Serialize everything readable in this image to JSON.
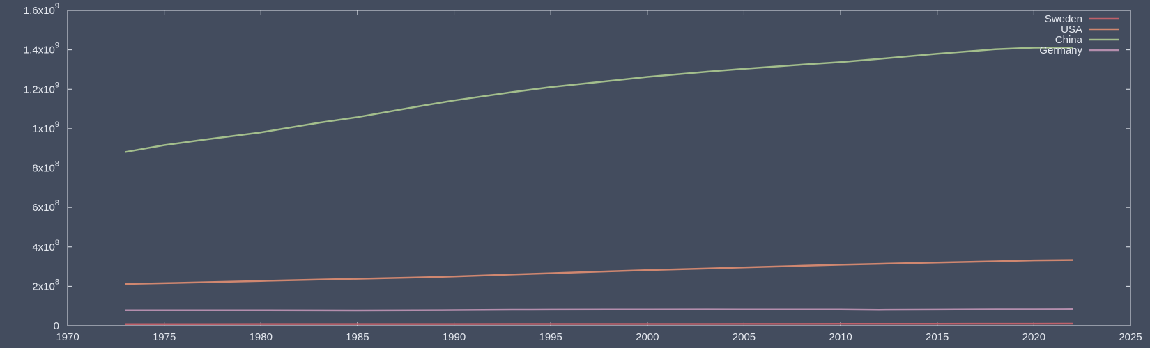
{
  "chart_data": {
    "type": "line",
    "title": "",
    "xlabel": "",
    "ylabel": "",
    "xlim": [
      1970,
      2025
    ],
    "ylim": [
      0,
      1600000000
    ],
    "x_ticks": [
      {
        "value": 1970,
        "label": "1970"
      },
      {
        "value": 1975,
        "label": "1975"
      },
      {
        "value": 1980,
        "label": "1980"
      },
      {
        "value": 1985,
        "label": "1985"
      },
      {
        "value": 1990,
        "label": "1990"
      },
      {
        "value": 1995,
        "label": "1995"
      },
      {
        "value": 2000,
        "label": "2000"
      },
      {
        "value": 2005,
        "label": "2005"
      },
      {
        "value": 2010,
        "label": "2010"
      },
      {
        "value": 2015,
        "label": "2015"
      },
      {
        "value": 2020,
        "label": "2020"
      },
      {
        "value": 2025,
        "label": "2025"
      }
    ],
    "y_ticks": [
      {
        "value": 0,
        "mantissa": "0",
        "exponent": ""
      },
      {
        "value": 200000000,
        "mantissa": "2x10",
        "exponent": "8"
      },
      {
        "value": 400000000,
        "mantissa": "4x10",
        "exponent": "8"
      },
      {
        "value": 600000000,
        "mantissa": "6x10",
        "exponent": "8"
      },
      {
        "value": 800000000,
        "mantissa": "8x10",
        "exponent": "8"
      },
      {
        "value": 1000000000,
        "mantissa": "1x10",
        "exponent": "9"
      },
      {
        "value": 1200000000,
        "mantissa": "1.2x10",
        "exponent": "9"
      },
      {
        "value": 1400000000,
        "mantissa": "1.4x10",
        "exponent": "9"
      },
      {
        "value": 1600000000,
        "mantissa": "1.6x10",
        "exponent": "9"
      }
    ],
    "grid": false,
    "legend_position": "top-right",
    "x": [
      1973,
      1975,
      1977,
      1980,
      1983,
      1985,
      1988,
      1990,
      1993,
      1995,
      1998,
      2000,
      2003,
      2005,
      2008,
      2010,
      2012,
      2015,
      2018,
      2020,
      2022
    ],
    "series": [
      {
        "name": "Sweden",
        "color": "#bf616a",
        "values": [
          8140000,
          8190000,
          8250000,
          8310000,
          8330000,
          8350000,
          8440000,
          8560000,
          8720000,
          8830000,
          8850000,
          8870000,
          8960000,
          9030000,
          9220000,
          9380000,
          9520000,
          9800000,
          10180000,
          10350000,
          10490000
        ]
      },
      {
        "name": "USA",
        "color": "#d08770",
        "values": [
          211900000,
          215970000,
          220240000,
          227220000,
          233790000,
          237920000,
          244500000,
          249620000,
          259920000,
          266280000,
          275850000,
          282160000,
          290110000,
          295520000,
          304090000,
          309330000,
          313880000,
          320740000,
          326840000,
          331500000,
          333290000
        ]
      },
      {
        "name": "China",
        "color": "#a3be8c",
        "values": [
          881900000,
          916400000,
          943500000,
          981200000,
          1030100000,
          1058500000,
          1110300000,
          1143300000,
          1185200000,
          1211200000,
          1241900000,
          1262600000,
          1288400000,
          1303700000,
          1324700000,
          1337700000,
          1354200000,
          1379900000,
          1402800000,
          1411100000,
          1412200000
        ]
      },
      {
        "name": "Germany",
        "color": "#b48ead",
        "values": [
          78940000,
          78670000,
          78330000,
          78290000,
          78010000,
          77680000,
          78400000,
          79430000,
          81150000,
          81680000,
          82030000,
          82210000,
          82530000,
          82470000,
          82110000,
          81780000,
          80430000,
          81690000,
          82900000,
          83160000,
          83800000
        ]
      }
    ]
  }
}
